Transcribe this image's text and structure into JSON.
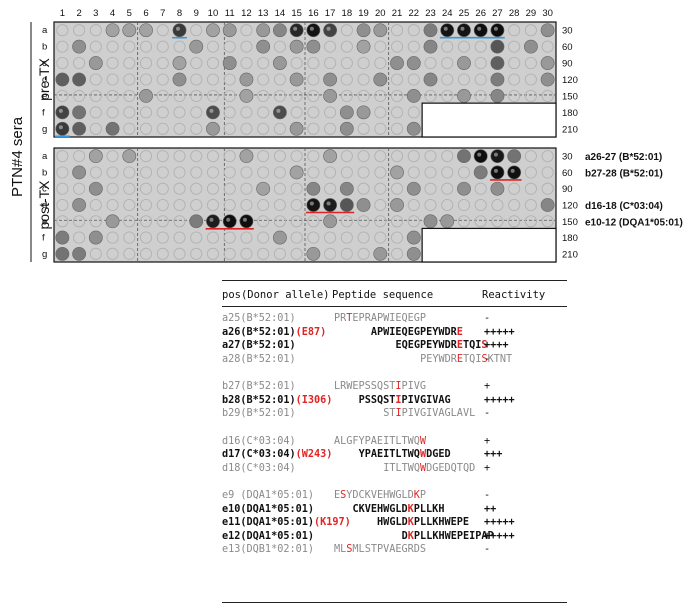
{
  "figure": {
    "side_label": "PTN#4 sera",
    "column_numbers": [
      "1",
      "2",
      "3",
      "4",
      "5",
      "6",
      "7",
      "8",
      "9",
      "10",
      "11",
      "12",
      "13",
      "14",
      "15",
      "16",
      "17",
      "18",
      "19",
      "20",
      "21",
      "22",
      "23",
      "24",
      "25",
      "26",
      "27",
      "28",
      "29",
      "30"
    ],
    "panels": [
      {
        "label": "pre-TX",
        "row_letters": [
          "a",
          "b",
          "c",
          "d",
          "e",
          "f",
          "g"
        ],
        "row_numbers": [
          "30",
          "60",
          "90",
          "120",
          "150",
          "180",
          "210"
        ],
        "annotations": []
      },
      {
        "label": "post-TX",
        "row_letters": [
          "a",
          "b",
          "c",
          "d",
          "e",
          "f",
          "g"
        ],
        "row_numbers": [
          "30",
          "60",
          "90",
          "120",
          "150",
          "180",
          "210"
        ],
        "annotations": [
          {
            "row": 0,
            "text": "a26-27 (B*52:01)"
          },
          {
            "row": 1,
            "text": "b27-28 (B*52:01)"
          },
          {
            "row": 3,
            "text": "d16-18 (C*03:04)"
          },
          {
            "row": 4,
            "text": "e10-12 (DQA1*05:01)"
          }
        ]
      }
    ]
  },
  "table": {
    "headers": {
      "pos": "pos(Donor allele)",
      "seq": "Peptide sequence",
      "react": "Reactivity"
    },
    "groups": [
      [
        {
          "pos": "a25(B*52:01)",
          "mut": "",
          "seq": [
            [
              "PR",
              ""
            ],
            [
              "T",
              "red"
            ],
            [
              "EPRAPWIEQEGP",
              ""
            ]
          ],
          "indent": 0,
          "react": "-",
          "bold": false
        },
        {
          "pos": "a26(B*52:01)",
          "mut": "(E87)",
          "seq": [
            [
              "APWIEQEGPEYWDR",
              ""
            ],
            [
              "E",
              "red"
            ]
          ],
          "indent": 6,
          "react": "+++++",
          "bold": true
        },
        {
          "pos": "a27(B*52:01)",
          "mut": "",
          "seq": [
            [
              "EQEGPEYWDR",
              ""
            ],
            [
              "E",
              "red"
            ],
            [
              "TQI",
              ""
            ],
            [
              "S",
              "red"
            ]
          ],
          "indent": 10,
          "react": "++++",
          "bold": true
        },
        {
          "pos": "a28(B*52:01)",
          "mut": "",
          "seq": [
            [
              "PEYWDR",
              ""
            ],
            [
              "E",
              "red"
            ],
            [
              "TQI",
              ""
            ],
            [
              "S",
              "red"
            ],
            [
              "KTNT",
              ""
            ]
          ],
          "indent": 14,
          "react": "-",
          "bold": false
        }
      ],
      [
        {
          "pos": "b27(B*52:01)",
          "mut": "",
          "seq": [
            [
              "LRWEPSSQST",
              ""
            ],
            [
              "I",
              "red"
            ],
            [
              "PIVG",
              ""
            ]
          ],
          "indent": 0,
          "react": "+",
          "bold": false
        },
        {
          "pos": "b28(B*52:01)",
          "mut": "(I306)",
          "seq": [
            [
              "PSSQST",
              ""
            ],
            [
              "I",
              "red"
            ],
            [
              "PIVGIVAG",
              ""
            ]
          ],
          "indent": 4,
          "react": "+++++",
          "bold": true
        },
        {
          "pos": "b29(B*52:01)",
          "mut": "",
          "seq": [
            [
              "ST",
              ""
            ],
            [
              "I",
              "red"
            ],
            [
              "PIVGIVAGLAVL",
              ""
            ]
          ],
          "indent": 8,
          "react": "-",
          "bold": false
        }
      ],
      [
        {
          "pos": "d16(C*03:04)",
          "mut": "",
          "seq": [
            [
              "ALGFYPAEITLTWQ",
              ""
            ],
            [
              "W",
              "red"
            ]
          ],
          "indent": 0,
          "react": "+",
          "bold": false
        },
        {
          "pos": "d17(C*03:04)",
          "mut": "(W243)",
          "seq": [
            [
              "YPAEITLTWQ",
              ""
            ],
            [
              "W",
              "red"
            ],
            [
              "DGED",
              ""
            ]
          ],
          "indent": 4,
          "react": "+++",
          "bold": true
        },
        {
          "pos": "d18(C*03:04)",
          "mut": "",
          "seq": [
            [
              "ITLTWQ",
              ""
            ],
            [
              "W",
              "red"
            ],
            [
              "DGEDQTQD",
              ""
            ]
          ],
          "indent": 8,
          "react": "+",
          "bold": false
        }
      ],
      [
        {
          "pos": "e9 (DQA1*05:01)",
          "mut": "",
          "seq": [
            [
              "E",
              ""
            ],
            [
              "S",
              "red"
            ],
            [
              "YDCKVEHWGLD",
              ""
            ],
            [
              "K",
              "red"
            ],
            [
              "P",
              ""
            ]
          ],
          "indent": 0,
          "react": "-",
          "bold": false
        },
        {
          "pos": "e10(DQA1*05:01)",
          "mut": "",
          "seq": [
            [
              "CKVEHWGLD",
              ""
            ],
            [
              "K",
              "red"
            ],
            [
              "PLLKH",
              ""
            ]
          ],
          "indent": 3,
          "react": "++",
          "bold": true
        },
        {
          "pos": "e11(DQA1*05:01)",
          "mut": "(K197)",
          "seq": [
            [
              "HWGLD",
              ""
            ],
            [
              "K",
              "red"
            ],
            [
              "PLLKHWEPE",
              ""
            ]
          ],
          "indent": 7,
          "react": "+++++",
          "bold": true
        },
        {
          "pos": "e12(DQA1*05:01)",
          "mut": "",
          "seq": [
            [
              "D",
              ""
            ],
            [
              "K",
              "red"
            ],
            [
              "PLLKHWEPEIPAP",
              ""
            ]
          ],
          "indent": 11,
          "react": "+++++",
          "bold": true
        },
        {
          "pos": "e13(DQB1*02:01)",
          "mut": "",
          "seq": [
            [
              "ML",
              ""
            ],
            [
              "S",
              "red"
            ],
            [
              "MLSTPVAEGRDS",
              ""
            ]
          ],
          "indent": 0,
          "react": "-",
          "bold": false
        }
      ]
    ]
  },
  "colors": {
    "red_mark": "#e02424",
    "blue_mark": "#3a9ad9",
    "panel_bg": "#cfcfcf"
  }
}
